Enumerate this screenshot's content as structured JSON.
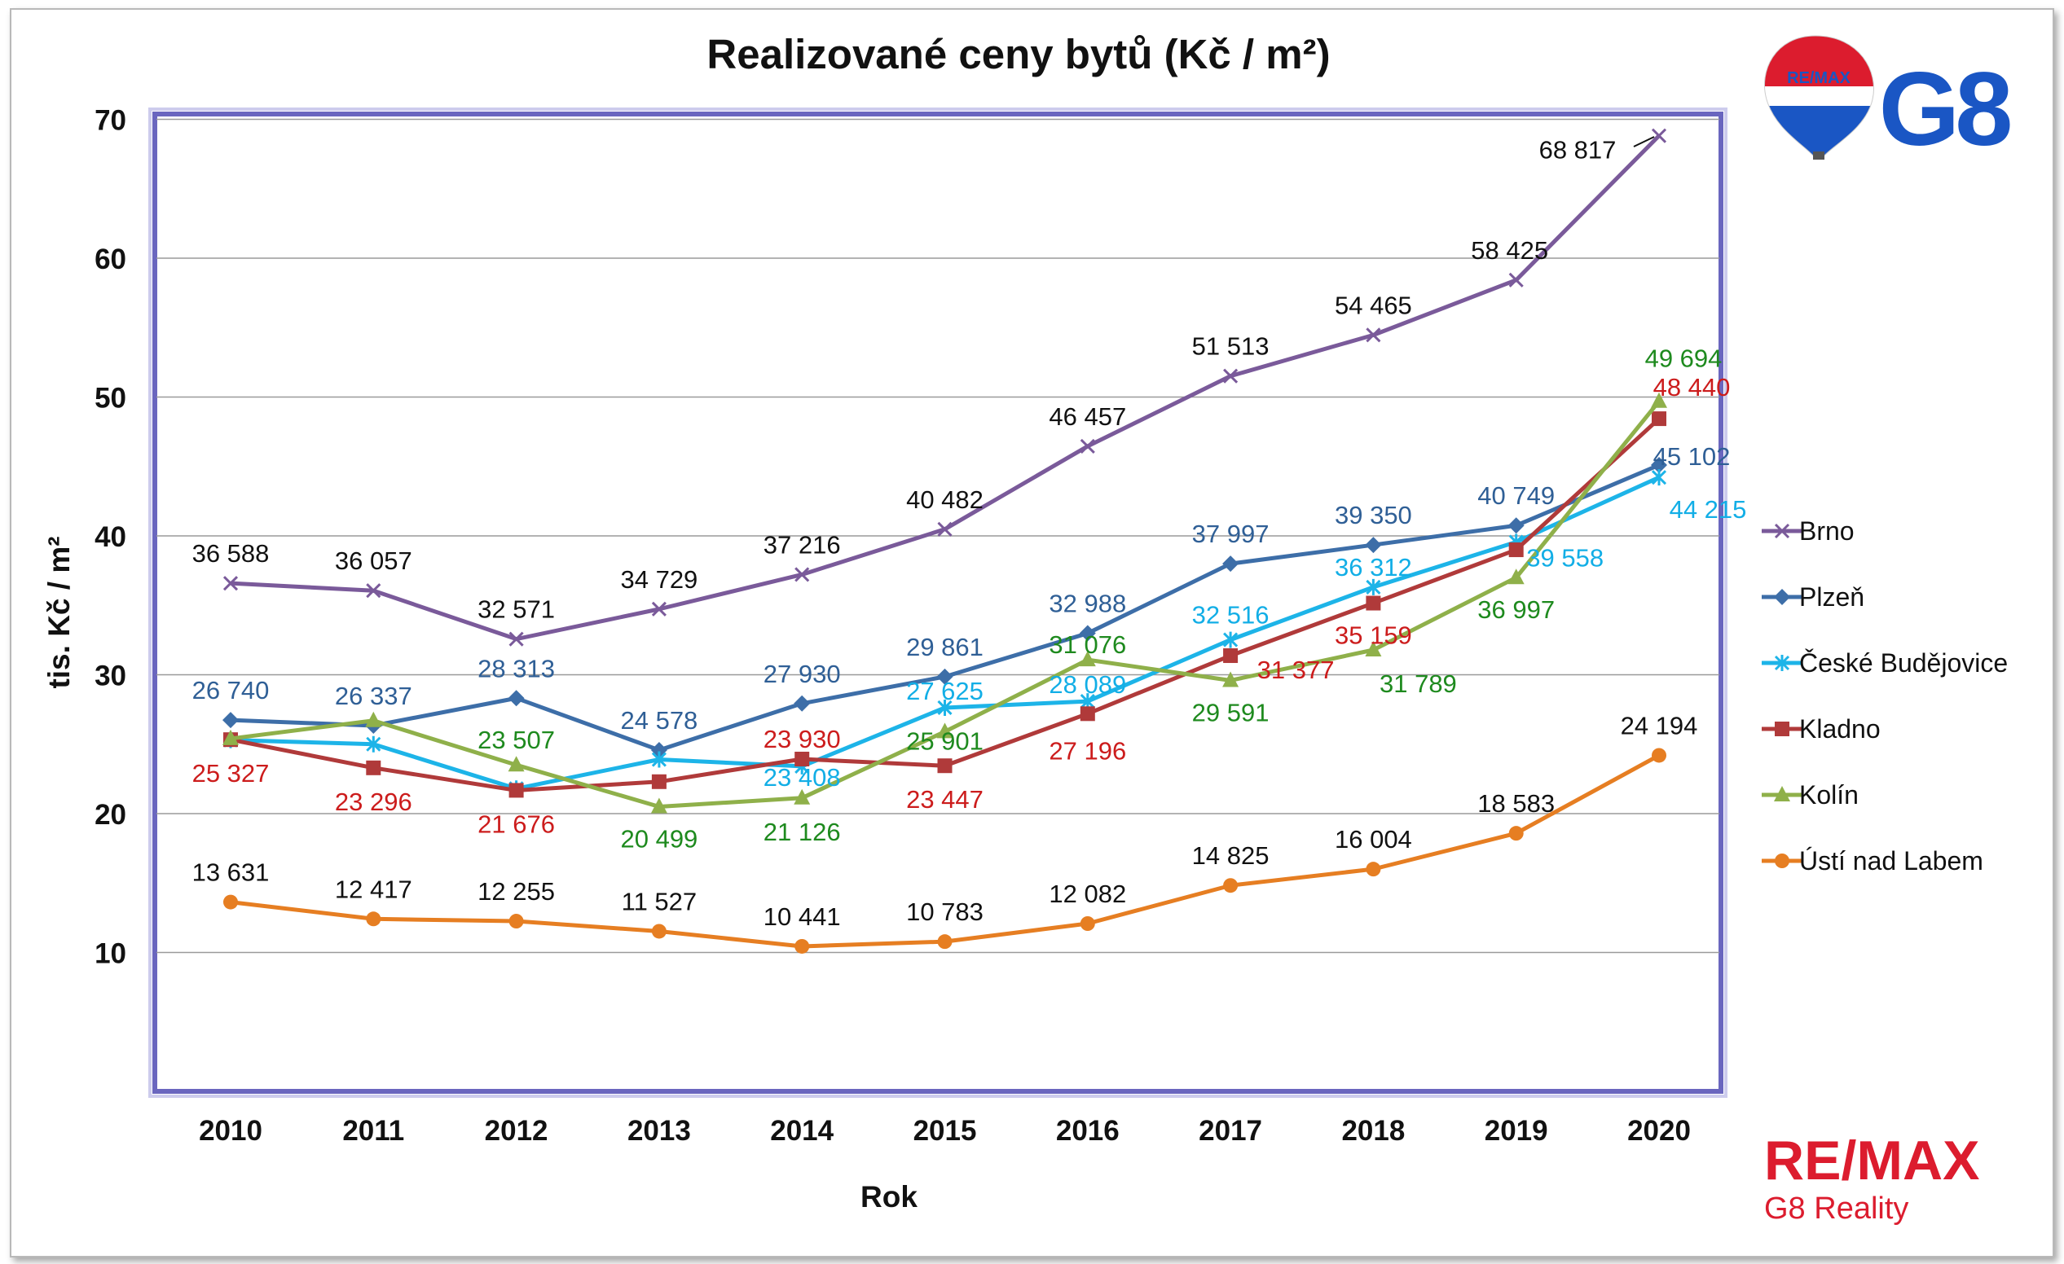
{
  "chart_data": {
    "type": "line",
    "title": "Realizované ceny bytů (Kč / m²)",
    "xlabel": "Rok",
    "ylabel": "tis. Kč / m²",
    "categories": [
      "2010",
      "2011",
      "2012",
      "2013",
      "2014",
      "2015",
      "2016",
      "2017",
      "2018",
      "2019",
      "2020"
    ],
    "ylim": [
      0,
      70
    ],
    "yticks": [
      "10",
      "20",
      "30",
      "40",
      "50",
      "60",
      "70"
    ],
    "grid": true,
    "legend_position": "right",
    "series": [
      {
        "name": "Brno",
        "color": "#7a5a9a",
        "labelColor": "#111111",
        "marker": "x",
        "values": [
          36.588,
          36.057,
          32.571,
          34.729,
          37.216,
          40.482,
          46.457,
          51.513,
          54.465,
          58.425,
          68.817
        ],
        "labels": [
          "36 588",
          "36 057",
          "32 571",
          "34 729",
          "37 216",
          "40 482",
          "46 457",
          "51 513",
          "54 465",
          "58 425",
          "68 817"
        ]
      },
      {
        "name": "Plzeň",
        "color": "#3d6ea8",
        "labelColor": "#2f5f96",
        "marker": "diamond",
        "values": [
          26.74,
          26.337,
          28.313,
          24.578,
          27.93,
          29.861,
          32.988,
          37.997,
          39.35,
          40.749,
          45.102
        ],
        "labels": [
          "26 740",
          "26 337",
          "28 313",
          "24 578",
          "27 930",
          "29 861",
          "32 988",
          "37 997",
          "39 350",
          "40 749",
          "45 102"
        ]
      },
      {
        "name": "České Budějovice",
        "color": "#1db4e8",
        "labelColor": "#12aee6",
        "marker": "star",
        "values": [
          25.3,
          25.0,
          21.8,
          23.9,
          23.408,
          27.625,
          28.089,
          32.516,
          36.312,
          39.558,
          44.215
        ],
        "labels": [
          "",
          "",
          "",
          "",
          "23 408",
          "27 625",
          "28 089",
          "32 516",
          "36 312",
          "39 558",
          "44 215"
        ]
      },
      {
        "name": "Kladno",
        "color": "#b03a3a",
        "labelColor": "#cc1c1c",
        "marker": "square",
        "values": [
          25.327,
          23.296,
          21.676,
          22.3,
          23.93,
          23.447,
          27.196,
          31.377,
          35.159,
          39.0,
          48.44
        ],
        "labels": [
          "25 327",
          "23 296",
          "21 676",
          "",
          "23 930",
          "23 447",
          "27 196",
          "31 377",
          "35 159",
          "",
          "48 440"
        ]
      },
      {
        "name": "Kolín",
        "color": "#8fb04a",
        "labelColor": "#1e8a1e",
        "marker": "triangle",
        "values": [
          25.4,
          26.7,
          23.507,
          20.499,
          21.126,
          25.901,
          31.076,
          29.591,
          31.789,
          36.997,
          49.694
        ],
        "labels": [
          "",
          "",
          "23 507",
          "20 499",
          "21 126",
          "25 901",
          "31 076",
          "29 591",
          "31 789",
          "36 997",
          "49 694"
        ]
      },
      {
        "name": "Ústí nad Labem",
        "color": "#e67e22",
        "labelColor": "#111111",
        "marker": "circle",
        "values": [
          13.631,
          12.417,
          12.255,
          11.527,
          10.441,
          10.783,
          12.082,
          14.825,
          16.004,
          18.583,
          24.194
        ],
        "labels": [
          "13 631",
          "12 417",
          "12 255",
          "11 527",
          "10 441",
          "10 783",
          "12 082",
          "14 825",
          "16 004",
          "18 583",
          "24 194"
        ]
      }
    ]
  },
  "logos": {
    "balloon_text": "RE/MAX",
    "g8_text": "G8",
    "brand_text": "RE/MAX",
    "brand_subtitle": "G8 Reality",
    "brand_color": "#dc1c2e",
    "g8_color": "#1a56c4"
  }
}
